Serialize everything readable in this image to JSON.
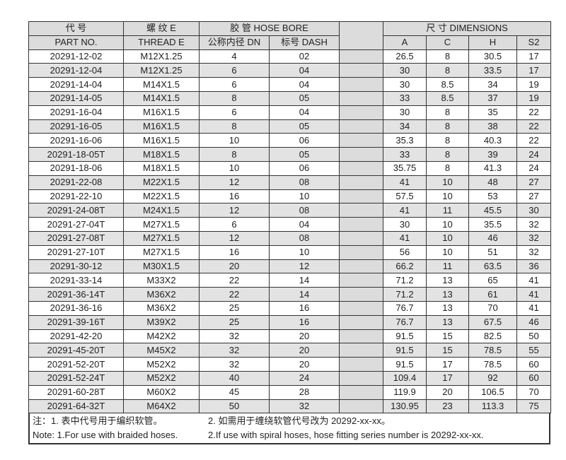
{
  "header": {
    "part_cn": "代 号",
    "part_en": "PART NO.",
    "thread_cn": "螺 纹 E",
    "thread_en": "THREAD  E",
    "hose": "胶 管  HOSE BORE",
    "dn": "公称内径 DN",
    "dash": "标号 DASH",
    "dims": "尺 寸   DIMENSIONS",
    "a": "A",
    "c": "C",
    "h": "H",
    "s2": "S2"
  },
  "rows": [
    [
      "20291-12-02",
      "M12X1.25",
      "4",
      "02",
      "26.5",
      "8",
      "30.5",
      "17"
    ],
    [
      "20291-12-04",
      "M12X1.25",
      "6",
      "04",
      "30",
      "8",
      "33.5",
      "17"
    ],
    [
      "20291-14-04",
      "M14X1.5",
      "6",
      "04",
      "30",
      "8.5",
      "34",
      "19"
    ],
    [
      "20291-14-05",
      "M14X1.5",
      "8",
      "05",
      "33",
      "8.5",
      "37",
      "19"
    ],
    [
      "20291-16-04",
      "M16X1.5",
      "6",
      "04",
      "30",
      "8",
      "35",
      "22"
    ],
    [
      "20291-16-05",
      "M16X1.5",
      "8",
      "05",
      "34",
      "8",
      "38",
      "22"
    ],
    [
      "20291-16-06",
      "M16X1.5",
      "10",
      "06",
      "35.3",
      "8",
      "40.3",
      "22"
    ],
    [
      "20291-18-05T",
      "M18X1.5",
      "8",
      "05",
      "33",
      "8",
      "39",
      "24"
    ],
    [
      "20291-18-06",
      "M18X1.5",
      "10",
      "06",
      "35.75",
      "8",
      "41.3",
      "24"
    ],
    [
      "20291-22-08",
      "M22X1.5",
      "12",
      "08",
      "41",
      "10",
      "48",
      "27"
    ],
    [
      "20291-22-10",
      "M22X1.5",
      "16",
      "10",
      "57.5",
      "10",
      "53",
      "27"
    ],
    [
      "20291-24-08T",
      "M24X1.5",
      "12",
      "08",
      "41",
      "11",
      "45.5",
      "30"
    ],
    [
      "20291-27-04T",
      "M27X1.5",
      "6",
      "04",
      "30",
      "10",
      "35.5",
      "32"
    ],
    [
      "20291-27-08T",
      "M27X1.5",
      "12",
      "08",
      "41",
      "10",
      "46",
      "32"
    ],
    [
      "20291-27-10T",
      "M27X1.5",
      "16",
      "10",
      "56",
      "10",
      "51",
      "32"
    ],
    [
      "20291-30-12",
      "M30X1.5",
      "20",
      "12",
      "66.2",
      "11",
      "63.5",
      "36"
    ],
    [
      "20291-33-14",
      "M33X2",
      "22",
      "14",
      "71.2",
      "13",
      "65",
      "41"
    ],
    [
      "20291-36-14T",
      "M36X2",
      "22",
      "14",
      "71.2",
      "13",
      "61",
      "41"
    ],
    [
      "20291-36-16",
      "M36X2",
      "25",
      "16",
      "76.7",
      "13",
      "70",
      "41"
    ],
    [
      "20291-39-16T",
      "M39X2",
      "25",
      "16",
      "76.7",
      "13",
      "67.5",
      "46"
    ],
    [
      "20291-42-20",
      "M42X2",
      "32",
      "20",
      "91.5",
      "15",
      "82.5",
      "50"
    ],
    [
      "20291-45-20T",
      "M45X2",
      "32",
      "20",
      "91.5",
      "15",
      "78.5",
      "55"
    ],
    [
      "20291-52-20T",
      "M52X2",
      "32",
      "20",
      "91.5",
      "17",
      "78.5",
      "60"
    ],
    [
      "20291-52-24T",
      "M52X2",
      "40",
      "24",
      "109.4",
      "17",
      "92",
      "60"
    ],
    [
      "20291-60-28T",
      "M60X2",
      "45",
      "28",
      "119.9",
      "20",
      "106.5",
      "70"
    ],
    [
      "20291-64-32T",
      "M64X2",
      "50",
      "32",
      "130.95",
      "23",
      "113.3",
      "75"
    ]
  ],
  "notes": {
    "cn1": "注：1. 表中代号用于编织软管。",
    "cn2": "2. 如需用于缠绕软管代号改为 20292-xx-xx。",
    "en1": "Note: 1.For use with braided hoses.",
    "en2": "2.If use with spiral hoses, hose fitting series number is 20292-xx-xx."
  }
}
